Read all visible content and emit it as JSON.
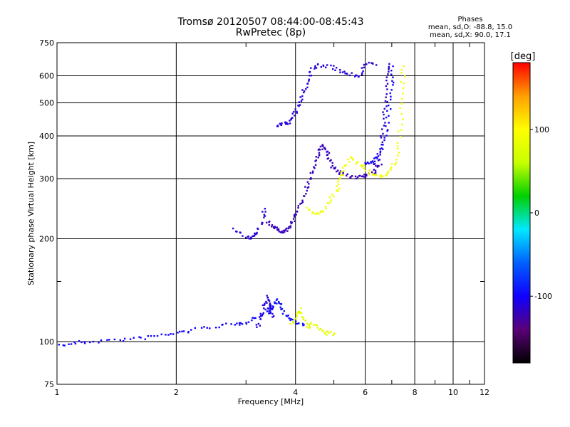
{
  "chart_data": {
    "type": "scatter",
    "title": "Tromsø 20120507 08:44:00-08:45:43",
    "subtitle": "RwPretec (8p)",
    "xlabel": "Frequency [MHz]",
    "ylabel": "Stationary phase Virtual Height [km]",
    "x_scale": "log",
    "y_scale": "log",
    "xlim": [
      1,
      12
    ],
    "ylim": [
      75,
      750
    ],
    "x_ticks": [
      1,
      2,
      4,
      6,
      8,
      10,
      12
    ],
    "x_minor_ticks": [
      3,
      5,
      7,
      9,
      11
    ],
    "y_ticks": [
      75,
      100,
      200,
      300,
      400,
      500,
      600,
      750
    ],
    "y_minor_ticks": [
      150
    ],
    "grid": true,
    "phases_box": {
      "heading": "Phases",
      "line_o": "mean, sd,O: -88.8, 15.0",
      "line_x": "mean, sd,X: 90.0, 17.1"
    },
    "colorbar": {
      "label": "[deg]",
      "range": [
        -180,
        180
      ],
      "ticks": [
        100,
        0,
        -100
      ],
      "stops": [
        "#000000",
        "#5a0078",
        "#1000ff",
        "#0060ff",
        "#00e8ff",
        "#00d000",
        "#c8ff00",
        "#ffff00",
        "#ffa000",
        "#ff0000"
      ]
    },
    "traces": [
      {
        "name": "",
        "phase": -100,
        "points": [
          [
            1.0,
            97
          ],
          [
            1.1,
            99
          ],
          [
            1.2,
            100
          ],
          [
            1.4,
            101
          ],
          [
            1.6,
            102
          ],
          [
            1.8,
            104
          ],
          [
            2.0,
            106
          ],
          [
            2.2,
            108
          ],
          [
            2.5,
            111
          ],
          [
            2.8,
            112
          ],
          [
            3.0,
            114
          ],
          [
            3.2,
            118
          ],
          [
            3.4,
            122
          ],
          [
            3.5,
            125
          ]
        ]
      },
      {
        "name": "",
        "phase": -95,
        "points": [
          [
            3.4,
            125
          ],
          [
            3.5,
            128
          ],
          [
            3.6,
            132
          ],
          [
            3.7,
            125
          ],
          [
            3.8,
            118
          ],
          [
            4.0,
            114
          ],
          [
            4.2,
            112
          ]
        ]
      },
      {
        "name": "",
        "phase": -110,
        "points": [
          [
            3.2,
            110
          ],
          [
            3.3,
            118
          ],
          [
            3.35,
            128
          ],
          [
            3.4,
            136
          ],
          [
            3.45,
            128
          ],
          [
            3.5,
            118
          ]
        ]
      },
      {
        "name": "",
        "phase": 80,
        "points": [
          [
            3.9,
            112
          ],
          [
            4.0,
            118
          ],
          [
            4.1,
            124
          ],
          [
            4.2,
            116
          ],
          [
            4.3,
            110
          ],
          [
            4.4,
            113
          ],
          [
            4.6,
            108
          ],
          [
            4.8,
            106
          ],
          [
            5.0,
            105
          ]
        ]
      },
      {
        "name": "",
        "phase": -110,
        "points": [
          [
            2.8,
            212
          ],
          [
            3.0,
            203
          ],
          [
            3.1,
            202
          ],
          [
            3.2,
            206
          ],
          [
            3.3,
            225
          ],
          [
            3.35,
            245
          ]
        ]
      },
      {
        "name": "",
        "phase": -120,
        "points": [
          [
            3.4,
            225
          ],
          [
            3.5,
            218
          ],
          [
            3.6,
            212
          ],
          [
            3.7,
            210
          ],
          [
            3.8,
            212
          ],
          [
            3.9,
            220
          ],
          [
            4.0,
            232
          ],
          [
            4.1,
            248
          ],
          [
            4.2,
            268
          ],
          [
            4.3,
            290
          ],
          [
            4.4,
            312
          ],
          [
            4.5,
            340
          ],
          [
            4.6,
            362
          ],
          [
            4.7,
            375
          ],
          [
            4.8,
            362
          ],
          [
            4.9,
            338
          ],
          [
            5.0,
            320
          ],
          [
            5.2,
            310
          ],
          [
            5.5,
            305
          ],
          [
            5.8,
            303
          ],
          [
            6.0,
            305
          ],
          [
            6.3,
            312
          ],
          [
            6.6,
            330
          ]
        ]
      },
      {
        "name": "",
        "phase": 90,
        "points": [
          [
            4.3,
            245
          ],
          [
            4.5,
            236
          ],
          [
            4.7,
            244
          ],
          [
            4.9,
            260
          ],
          [
            5.1,
            280
          ],
          [
            5.2,
            300
          ],
          [
            5.3,
            320
          ],
          [
            5.5,
            345
          ],
          [
            5.8,
            332
          ],
          [
            6.0,
            318
          ],
          [
            6.3,
            308
          ],
          [
            6.6,
            305
          ],
          [
            6.9,
            312
          ],
          [
            7.1,
            330
          ],
          [
            7.3,
            370
          ],
          [
            7.4,
            450
          ],
          [
            7.45,
            550
          ],
          [
            7.5,
            640
          ]
        ]
      },
      {
        "name": "",
        "phase": -110,
        "points": [
          [
            3.6,
            430
          ],
          [
            3.7,
            432
          ],
          [
            3.8,
            435
          ],
          [
            3.9,
            445
          ],
          [
            4.0,
            470
          ],
          [
            4.1,
            500
          ],
          [
            4.2,
            540
          ],
          [
            4.3,
            580
          ],
          [
            4.4,
            630
          ],
          [
            4.6,
            645
          ],
          [
            4.9,
            640
          ],
          [
            5.2,
            620
          ],
          [
            5.5,
            605
          ],
          [
            5.8,
            600
          ],
          [
            6.0,
            650
          ],
          [
            6.4,
            645
          ]
        ]
      },
      {
        "name": "",
        "phase": -115,
        "points": [
          [
            6.3,
            320
          ],
          [
            6.5,
            350
          ],
          [
            6.6,
            400
          ],
          [
            6.7,
            460
          ],
          [
            6.8,
            520
          ],
          [
            6.85,
            600
          ],
          [
            6.9,
            650
          ]
        ]
      },
      {
        "name": "",
        "phase": -100,
        "points": [
          [
            6.0,
            330
          ],
          [
            6.2,
            335
          ],
          [
            6.4,
            345
          ],
          [
            6.6,
            370
          ],
          [
            6.8,
            420
          ],
          [
            6.9,
            480
          ],
          [
            7.0,
            560
          ],
          [
            7.05,
            640
          ]
        ]
      }
    ]
  }
}
